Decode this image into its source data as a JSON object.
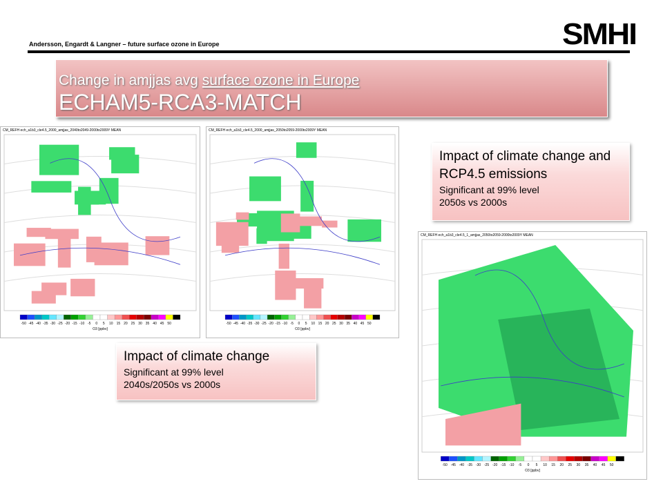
{
  "header": {
    "citation": "Andersson, Engardt & Langner – future surface ozone in Europe",
    "logo": "SMHI"
  },
  "title": {
    "line1_plain": "Change in amjjas avg ",
    "line1_underlined": "surface ozone in Europe",
    "line2": "ECHAM5-RCA3-MATCH"
  },
  "maps": [
    {
      "header": "CM_REFH ech_a1b3_cle4.5_2000_amjjas_2040to2049-2000to2009Y MEAN",
      "unit": "O3 [ppbv]",
      "colorbar_labels": [
        "-50",
        "-45",
        "-40",
        "-35",
        "-30",
        "-25",
        "-20",
        "-15",
        "-10",
        "-5",
        "0",
        "5",
        "10",
        "15",
        "20",
        "25",
        "30",
        "35",
        "40",
        "45",
        "50"
      ]
    },
    {
      "header": "CM_REFH ech_a1b3_cle4.5_2000_amjjas_2050to2059-2000to2009Y MEAN",
      "unit": "O3 [ppbv]",
      "colorbar_labels": [
        "-50",
        "-45",
        "-40",
        "-35",
        "-30",
        "-25",
        "-20",
        "-15",
        "-10",
        "-5",
        "0",
        "5",
        "10",
        "15",
        "20",
        "25",
        "30",
        "35",
        "40",
        "45",
        "50"
      ]
    },
    {
      "header": "CM_REFH ech_a1b3_cle4.5_1_amjjas_2050to2059-2000to2009Y MEAN",
      "unit": "O3 [ppbv]",
      "colorbar_labels": [
        "-50",
        "-45",
        "-40",
        "-35",
        "-30",
        "-25",
        "-20",
        "-15",
        "-10",
        "-5",
        "0",
        "5",
        "10",
        "15",
        "20",
        "25",
        "30",
        "35",
        "40",
        "45",
        "50"
      ]
    }
  ],
  "notes": [
    {
      "heading": "Impact of climate change",
      "lines": [
        "Significant at 99% level",
        "2040s/2050s vs 2000s"
      ]
    },
    {
      "heading": "Impact of climate change and RCP4.5 emissions",
      "lines": [
        "Significant at 99% level",
        "2050s vs 2000s"
      ]
    }
  ]
}
